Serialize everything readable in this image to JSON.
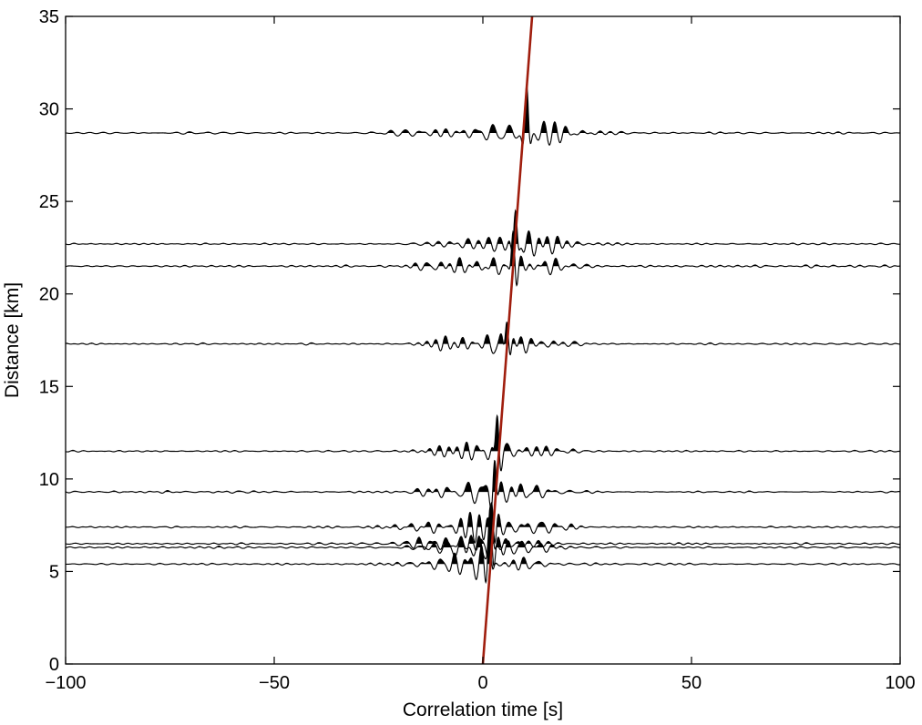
{
  "chart_data": {
    "type": "line",
    "subtype": "seismic-record-section",
    "title": "",
    "xlabel": "Correlation time [s]",
    "ylabel": "Distance [km]",
    "xlim": [
      -100,
      100
    ],
    "ylim": [
      0,
      35
    ],
    "x_ticks": [
      -100,
      -50,
      0,
      50,
      100
    ],
    "x_tick_labels": [
      "−100",
      "−50",
      "0",
      "50",
      "100"
    ],
    "y_ticks": [
      0,
      5,
      10,
      15,
      20,
      25,
      30,
      35
    ],
    "y_tick_labels": [
      "0",
      "5",
      "10",
      "15",
      "20",
      "25",
      "30",
      "35"
    ],
    "grid": false,
    "trace_color": "#000000",
    "fill_color": "#000000",
    "fill_positive": true,
    "traces": [
      {
        "distance": 5.4,
        "peak_time": 1.5,
        "amplitude": 2.0
      },
      {
        "distance": 6.3,
        "peak_time": 1.8,
        "amplitude": 2.0
      },
      {
        "distance": 6.5,
        "peak_time": 2.0,
        "amplitude": 2.0
      },
      {
        "distance": 7.4,
        "peak_time": 2.2,
        "amplitude": 2.0
      },
      {
        "distance": 9.3,
        "peak_time": 2.8,
        "amplitude": 2.0
      },
      {
        "distance": 11.5,
        "peak_time": 3.5,
        "amplitude": 2.0
      },
      {
        "distance": 17.3,
        "peak_time": 5.8,
        "amplitude": 1.8
      },
      {
        "distance": 21.5,
        "peak_time": 7.3,
        "amplitude": 1.9
      },
      {
        "distance": 22.7,
        "peak_time": 7.8,
        "amplitude": 1.9
      },
      {
        "distance": 28.7,
        "peak_time": 10.5,
        "amplitude": 2.3
      }
    ],
    "moveout_line": {
      "color": "#a01e0e",
      "x": [
        0,
        11.8
      ],
      "y": [
        0,
        35
      ]
    }
  }
}
